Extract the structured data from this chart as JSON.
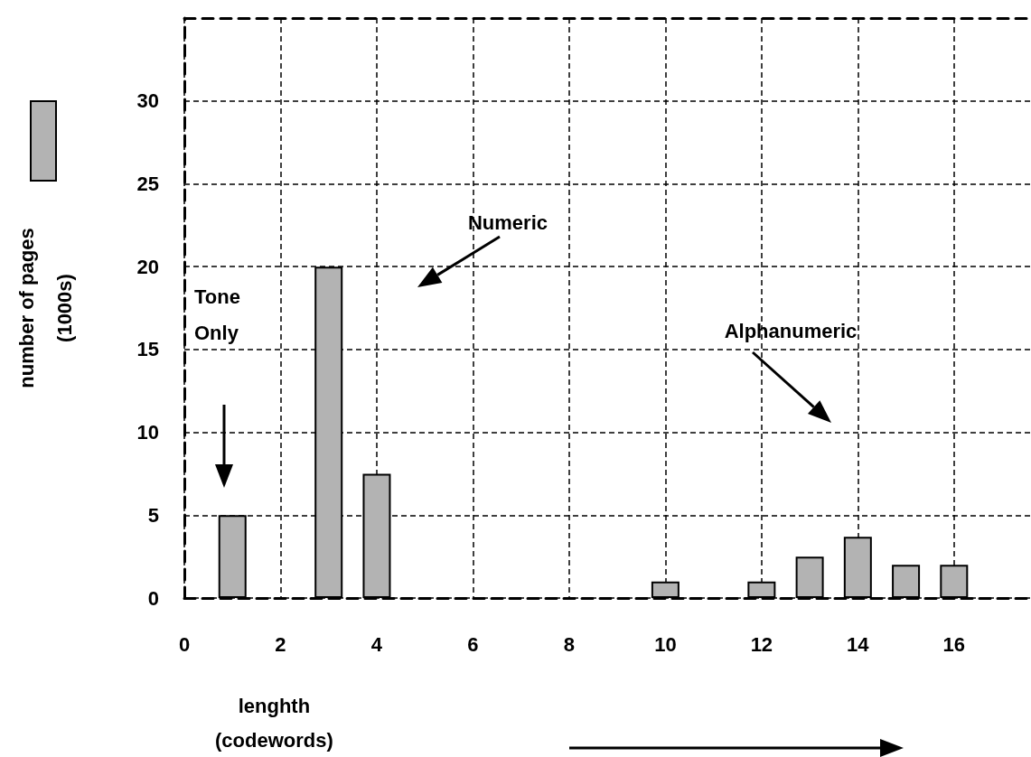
{
  "chart_data": {
    "type": "bar",
    "xlabel": "lenghth\n(codewords)",
    "ylabel": "number of pages\n(1000s)",
    "x": [
      1,
      3,
      4,
      10,
      12,
      13,
      14,
      15,
      16
    ],
    "values": [
      5,
      20,
      7.5,
      1,
      1,
      2.5,
      3.7,
      2,
      2
    ],
    "color": "#b3b3b3",
    "xlim": [
      0,
      17.6
    ],
    "xticks": [
      0,
      2,
      4,
      6,
      8,
      10,
      12,
      14,
      16
    ],
    "ylim": [
      0,
      35
    ],
    "yticks": [
      0,
      5,
      10,
      15,
      20,
      25,
      30
    ],
    "grid": true,
    "annotations": [
      "Tone\nOnly",
      "Numeric",
      "Alphanumeric"
    ]
  }
}
